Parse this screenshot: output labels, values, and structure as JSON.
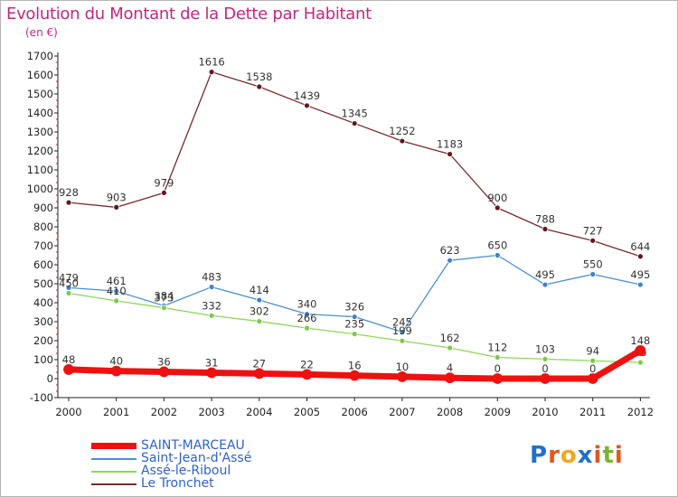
{
  "title": "Evolution du Montant de la Dette par Habitant",
  "subtitle": "(en €)",
  "logo": {
    "letters": [
      "P",
      "r",
      "o",
      "x",
      "i",
      "t",
      "i"
    ],
    "colors": [
      "#1e6fd0",
      "#e3571a",
      "#f0a91c",
      "#1e6fd0",
      "#e3571a",
      "#7bb32e",
      "#e3571a"
    ]
  },
  "chart_data": {
    "type": "line",
    "x": [
      "2000",
      "2001",
      "2002",
      "2003",
      "2004",
      "2005",
      "2006",
      "2007",
      "2008",
      "2009",
      "2010",
      "2011",
      "2012"
    ],
    "ylim": [
      -100,
      1700
    ],
    "yticks": [
      "-100",
      "0",
      "100",
      "200",
      "300",
      "400",
      "500",
      "600",
      "700",
      "800",
      "900",
      "1000",
      "1100",
      "1200",
      "1300",
      "1400",
      "1500",
      "1600",
      "1700"
    ],
    "grid": false,
    "legend_position": "bottom-left",
    "series": [
      {
        "name": "Le Tronchet",
        "color": "#7a2a2a",
        "marker": "#5e1a1a",
        "width": 1.3,
        "values": [
          928,
          903,
          979,
          1616,
          1538,
          1439,
          1345,
          1252,
          1183,
          900,
          788,
          727,
          644
        ],
        "labels": [
          "928",
          "903",
          "979",
          "1616",
          "1538",
          "1439",
          "1345",
          "1252",
          "1183",
          "900",
          "788",
          "727",
          "644"
        ]
      },
      {
        "name": "Saint-Jean-d'Assé",
        "color": "#4b8fd1",
        "marker": "#3f83c7",
        "width": 1.3,
        "values": [
          479,
          461,
          384,
          483,
          414,
          340,
          326,
          245,
          623,
          650,
          495,
          550,
          495
        ],
        "labels": [
          "479",
          "461",
          "384",
          "483",
          "414",
          "340",
          "326",
          "245",
          "623",
          "650",
          "495",
          "550",
          "495"
        ]
      },
      {
        "name": "Assé-le-Riboul",
        "color": "#8fd65a",
        "marker": "#7cc94a",
        "width": 1.3,
        "values": [
          450,
          410,
          373,
          332,
          302,
          266,
          235,
          199,
          162,
          112,
          103,
          94,
          85
        ],
        "labels": [
          "450",
          "410",
          "373",
          "332",
          "302",
          "266",
          "235",
          "199",
          "162",
          "112",
          "103",
          "94",
          "85"
        ]
      },
      {
        "name": "SAINT-MARCEAU",
        "color": "#ee1111",
        "marker": "#ee1111",
        "width": 7,
        "values": [
          48,
          40,
          36,
          31,
          27,
          22,
          16,
          10,
          4,
          0,
          0,
          0,
          148
        ],
        "labels": [
          "48",
          "40",
          "36",
          "31",
          "27",
          "22",
          "16",
          "10",
          "4",
          "0",
          "0",
          "0",
          "148"
        ]
      }
    ]
  },
  "legend": [
    {
      "name": "SAINT-MARCEAU",
      "color": "#ee1111",
      "thickness": 7
    },
    {
      "name": "Saint-Jean-d'Assé",
      "color": "#4b8fd1",
      "thickness": 2
    },
    {
      "name": "Assé-le-Riboul",
      "color": "#8fd65a",
      "thickness": 2
    },
    {
      "name": "Le Tronchet",
      "color": "#7a2a2a",
      "thickness": 2
    }
  ]
}
